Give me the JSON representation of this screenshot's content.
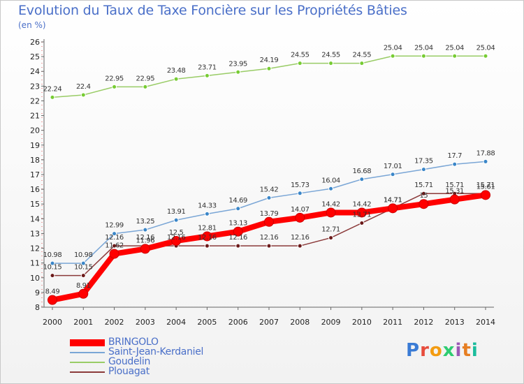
{
  "title": "Evolution du Taux de Taxe Foncière sur les Propriétés Bâties",
  "unit": "(en %)",
  "logo": {
    "letters": [
      "P",
      "r",
      "o",
      "x",
      "i",
      "t",
      "i"
    ],
    "colors": [
      "#3a7bd5",
      "#e74c3c",
      "#f39c12",
      "#2ecc71",
      "#9b59b6",
      "#e67e22",
      "#1abc9c"
    ]
  },
  "chart_data": {
    "type": "line",
    "x": [
      "2000",
      "2001",
      "2002",
      "2003",
      "2004",
      "2005",
      "2006",
      "2007",
      "2008",
      "2009",
      "2010",
      "2011",
      "2012",
      "2013",
      "2014"
    ],
    "ylim": [
      8,
      26
    ],
    "yticks": [
      8,
      9,
      10,
      11,
      12,
      13,
      14,
      15,
      16,
      17,
      18,
      19,
      20,
      21,
      22,
      23,
      24,
      25,
      26
    ],
    "grid": false,
    "legend": "bottom-left",
    "series": [
      {
        "name": "BRINGOLO",
        "color": "#ff0000",
        "marker": "#ff0000",
        "values": [
          8.49,
          8.91,
          11.62,
          11.96,
          12.5,
          12.81,
          13.13,
          13.79,
          14.07,
          14.42,
          14.42,
          14.71,
          15.0,
          15.31,
          15.61
        ],
        "labels": [
          "8.49",
          "8.91",
          "11.62",
          "11.96",
          "12.5",
          "12.81",
          "13.13",
          "13.79",
          "14.07",
          "14.42",
          "14.42",
          "14.71",
          "15",
          "15.31",
          "15.61"
        ]
      },
      {
        "name": "Saint-Jean-Kerdaniel",
        "color": "#7aa6d6",
        "marker": "#3a86c8",
        "values": [
          10.98,
          10.98,
          12.99,
          13.25,
          13.91,
          14.33,
          14.69,
          15.42,
          15.73,
          16.04,
          16.68,
          17.01,
          17.35,
          17.7,
          17.88
        ],
        "labels": [
          "10.98",
          "10.98",
          "12.99",
          "13.25",
          "13.91",
          "14.33",
          "14.69",
          "15.42",
          "15.73",
          "16.04",
          "16.68",
          "17.01",
          "17.35",
          "17.7",
          "17.88"
        ]
      },
      {
        "name": "Goudelin",
        "color": "#99cc66",
        "marker": "#77cc33",
        "values": [
          22.24,
          22.4,
          22.95,
          22.95,
          23.48,
          23.71,
          23.95,
          24.19,
          24.55,
          24.55,
          24.55,
          25.04,
          25.04,
          25.04,
          25.04
        ],
        "labels": [
          "22.24",
          "22.4",
          "22.95",
          "22.95",
          "23.48",
          "23.71",
          "23.95",
          "24.19",
          "24.55",
          "24.55",
          "24.55",
          "25.04",
          "25.04",
          "25.04",
          "25.04"
        ]
      },
      {
        "name": "Plouagat",
        "color": "#8b3a3a",
        "marker": "#6b1a1a",
        "values": [
          10.15,
          10.15,
          12.16,
          12.16,
          12.16,
          12.16,
          12.16,
          12.16,
          12.16,
          12.71,
          13.71,
          14.71,
          15.71,
          15.71,
          15.71
        ],
        "labels": [
          "10.15",
          "10.15",
          "12.16",
          "12.16",
          "12.16",
          "12.16",
          "12.16",
          "12.16",
          "12.16",
          "12.71",
          "13.71",
          "14.71",
          "15.71",
          "15.71",
          "15.71"
        ]
      }
    ]
  }
}
